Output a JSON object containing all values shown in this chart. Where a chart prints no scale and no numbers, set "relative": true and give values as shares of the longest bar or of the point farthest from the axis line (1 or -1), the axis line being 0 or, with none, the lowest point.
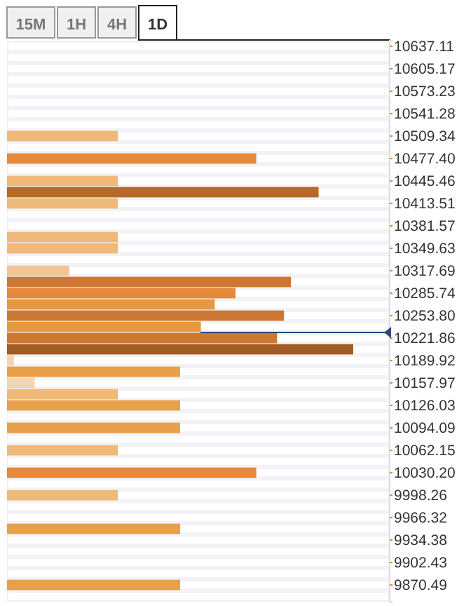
{
  "chart_data": {
    "type": "bar",
    "orientation": "horizontal",
    "relative": true,
    "categories": [
      "10637.11",
      null,
      "10605.17",
      null,
      "10573.23",
      null,
      "10541.28",
      null,
      "10509.34",
      null,
      "10477.40",
      null,
      "10445.46",
      null,
      "10413.51",
      null,
      "10381.57",
      null,
      "10349.63",
      null,
      "10317.69",
      null,
      "10285.74",
      null,
      "10253.80",
      null,
      "10221.86",
      null,
      "10189.92",
      null,
      "10157.97",
      null,
      "10126.03",
      null,
      "10094.09",
      null,
      "10062.15",
      null,
      "10030.20",
      null,
      "9998.26",
      null,
      "9966.32",
      null,
      "9934.38",
      null,
      "9902.43",
      null,
      "9870.49",
      null
    ],
    "values": [
      null,
      null,
      null,
      null,
      null,
      null,
      null,
      null,
      0.32,
      null,
      0.72,
      null,
      0.32,
      0.9,
      0.32,
      null,
      null,
      0.32,
      0.32,
      null,
      0.18,
      0.82,
      0.66,
      0.6,
      0.8,
      0.56,
      0.78,
      1,
      0.02,
      0.5,
      0.08,
      0.32,
      0.5,
      null,
      0.5,
      null,
      0.32,
      null,
      0.72,
      null,
      0.32,
      null,
      null,
      0.5,
      null,
      null,
      null,
      null,
      0.5,
      null
    ],
    "colors": [
      null,
      null,
      null,
      null,
      null,
      null,
      null,
      null,
      "#efb97a",
      null,
      "#e5893a",
      null,
      "#efb97a",
      "#b5692b",
      "#efb97a",
      null,
      null,
      "#efb97a",
      "#efb97a",
      null,
      "#f2c591",
      "#cd7832",
      "#e5893a",
      "#e8993f",
      "#cd7832",
      "#e8993f",
      "#cd7832",
      "#a05c22",
      "#f5d5b0",
      "#e8a04a",
      "#f5d5b0",
      "#efb97a",
      "#e8a04a",
      null,
      "#e8a04a",
      null,
      "#efb97a",
      null,
      "#e5893a",
      null,
      "#efb97a",
      null,
      null,
      "#e8a04a",
      null,
      null,
      null,
      null,
      "#e8a04a",
      null
    ],
    "ref_lines": [
      {
        "axis": "y",
        "value": "10221.86",
        "color": "#2b4a6f"
      }
    ],
    "annotations": [
      "15M",
      "1H",
      "4H",
      "1D"
    ]
  }
}
